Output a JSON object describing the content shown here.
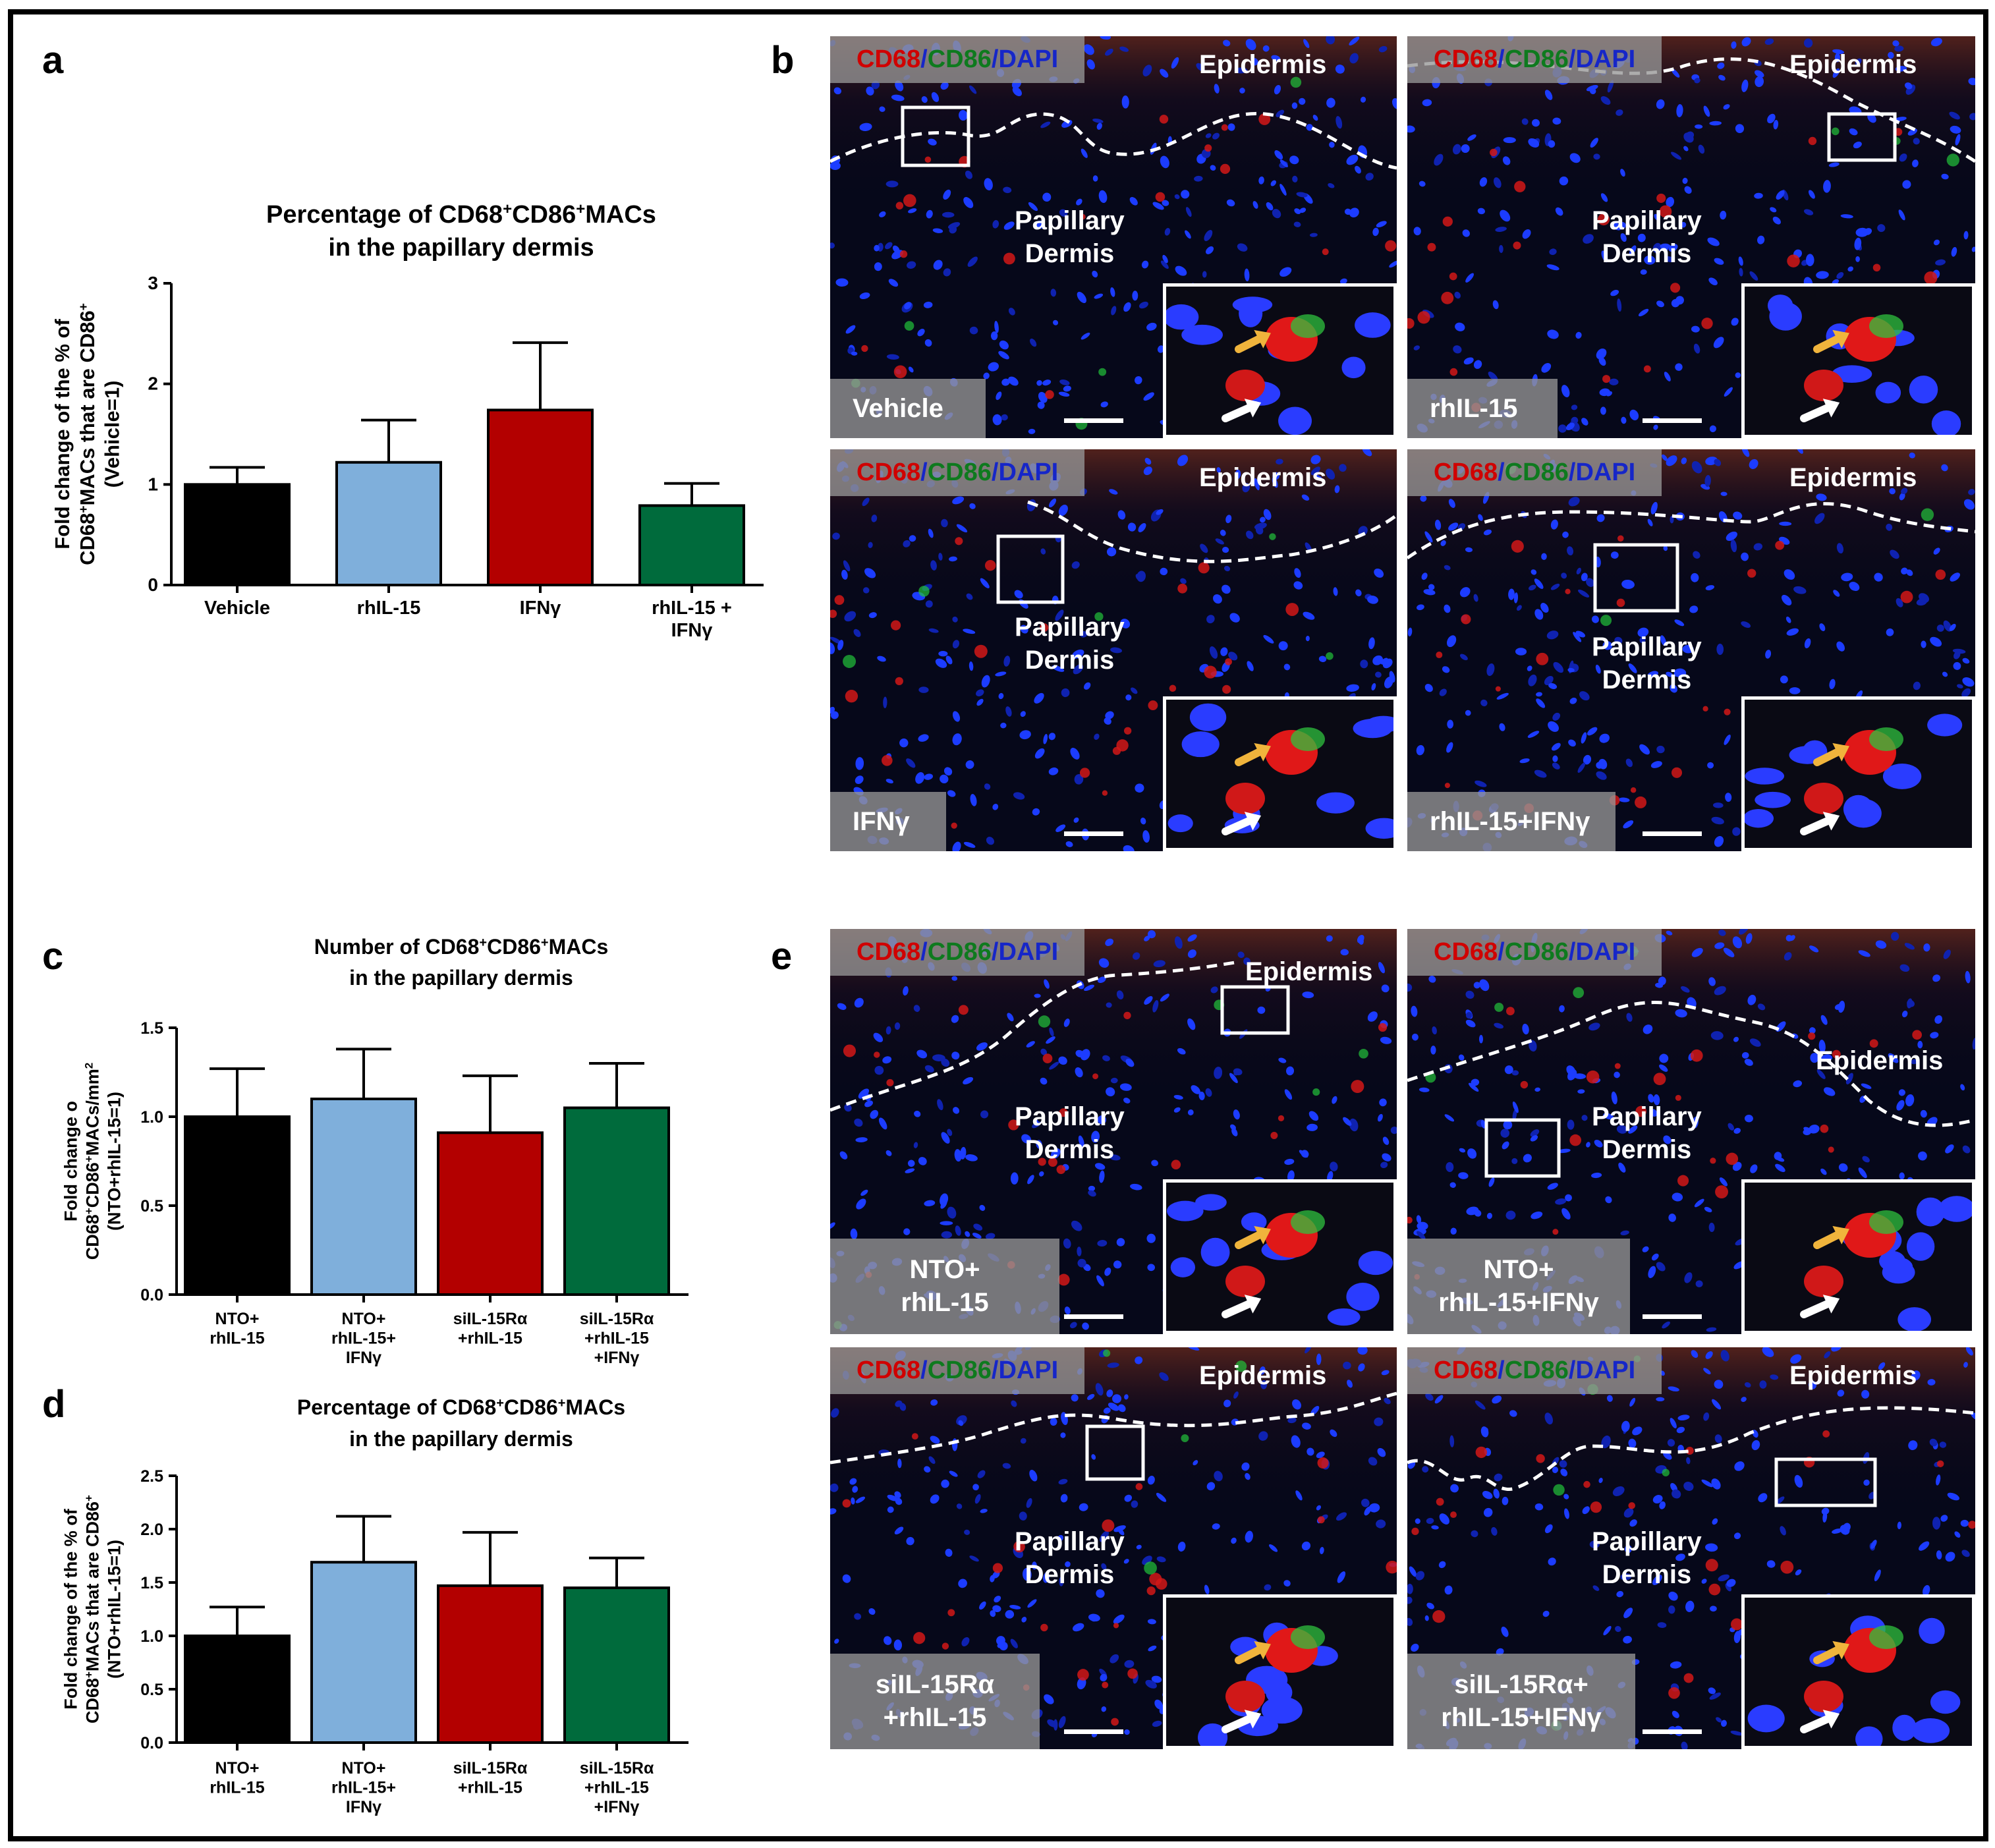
{
  "panels": {
    "a": "a",
    "b": "b",
    "c": "c",
    "d": "d",
    "e": "e"
  },
  "stain": {
    "cd68": "CD68",
    "cd86": "CD86",
    "dapi": "DAPI",
    "slash": "/"
  },
  "tissue": {
    "epidermis": "Epidermis",
    "papillary_line1": "Papillary",
    "papillary_line2": "Dermis"
  },
  "conditions_b": [
    "Vehicle",
    "rhIL-15",
    "IFNγ",
    "rhIL-15+IFNγ"
  ],
  "conditions_e": [
    [
      "NTO+",
      "rhIL-15"
    ],
    [
      "NTO+",
      "rhIL-15+IFNγ"
    ],
    [
      "siIL-15Rα",
      "+rhIL-15"
    ],
    [
      "siIL-15Rα+",
      "rhIL-15+IFNγ"
    ]
  ],
  "colors": {
    "black": "#000000",
    "blue": "#7fafdb",
    "red": "#b30000",
    "green": "#006b3c"
  },
  "chart_data": [
    {
      "panel": "a",
      "type": "bar",
      "title_lines": [
        [
          "Percentage of CD68",
          "+",
          "CD86",
          "+",
          "MACs"
        ],
        [
          "in the papillary dermis"
        ]
      ],
      "ylabel_lines": [
        [
          "Fold change of the % of"
        ],
        [
          "CD68",
          "+",
          "MACs that are CD86",
          "+"
        ],
        [
          "(Vehicle=1)"
        ]
      ],
      "categories": [
        [
          "Vehicle"
        ],
        [
          "rhIL-15"
        ],
        [
          "IFNγ"
        ],
        [
          "rhIL-15 +",
          "IFNγ"
        ]
      ],
      "values": [
        1.0,
        1.22,
        1.74,
        0.79
      ],
      "errors": [
        0.17,
        0.42,
        0.67,
        0.22
      ],
      "colors": [
        "#000000",
        "#7fafdb",
        "#b30000",
        "#006b3c"
      ],
      "yticks": [
        "0",
        "1",
        "2",
        "3"
      ],
      "ylim": [
        0,
        3
      ]
    },
    {
      "panel": "c",
      "type": "bar",
      "title_lines": [
        [
          "Number of CD68",
          "+",
          "CD86",
          "+",
          "MACs"
        ],
        [
          "in the papillary dermis"
        ]
      ],
      "ylabel_lines": [
        [
          "Fold change o"
        ],
        [
          "CD68",
          "+",
          "CD86",
          "+",
          "MACs/mm",
          "2"
        ],
        [
          "(NTO+rhIL-15=1)"
        ]
      ],
      "categories": [
        [
          "NTO+",
          "rhIL-15"
        ],
        [
          "NTO+",
          "rhIL-15+",
          "IFNγ"
        ],
        [
          "siIL-15Rα",
          "+rhIL-15"
        ],
        [
          "siIL-15Rα",
          "+rhIL-15",
          "+IFNγ"
        ]
      ],
      "values": [
        1.0,
        1.1,
        0.91,
        1.05
      ],
      "errors": [
        0.27,
        0.28,
        0.32,
        0.25
      ],
      "colors": [
        "#000000",
        "#7fafdb",
        "#b30000",
        "#006b3c"
      ],
      "yticks": [
        "0.0",
        "0.5",
        "1.0",
        "1.5"
      ],
      "ylim": [
        0,
        1.5
      ]
    },
    {
      "panel": "d",
      "type": "bar",
      "title_lines": [
        [
          "Percentage of CD68",
          "+",
          "CD86",
          "+",
          "MACs"
        ],
        [
          "in the papillary dermis"
        ]
      ],
      "ylabel_lines": [
        [
          "Fold change of the % of"
        ],
        [
          "CD68",
          "+",
          "MACs that are CD86",
          "+"
        ],
        [
          "(NTO+rhIL-15=1)"
        ]
      ],
      "categories": [
        [
          "NTO+",
          "rhIL-15"
        ],
        [
          "NTO+",
          "rhIL-15+",
          "IFNγ"
        ],
        [
          "siIL-15Rα",
          "+rhIL-15"
        ],
        [
          "siIL-15Rα",
          "+rhIL-15",
          "+IFNγ"
        ]
      ],
      "values": [
        1.0,
        1.69,
        1.47,
        1.45
      ],
      "errors": [
        0.27,
        0.43,
        0.5,
        0.28
      ],
      "colors": [
        "#000000",
        "#7fafdb",
        "#b30000",
        "#006b3c"
      ],
      "yticks": [
        "0.0",
        "0.5",
        "1.0",
        "1.5",
        "2.0",
        "2.5"
      ],
      "ylim": [
        0,
        2.5
      ]
    }
  ]
}
